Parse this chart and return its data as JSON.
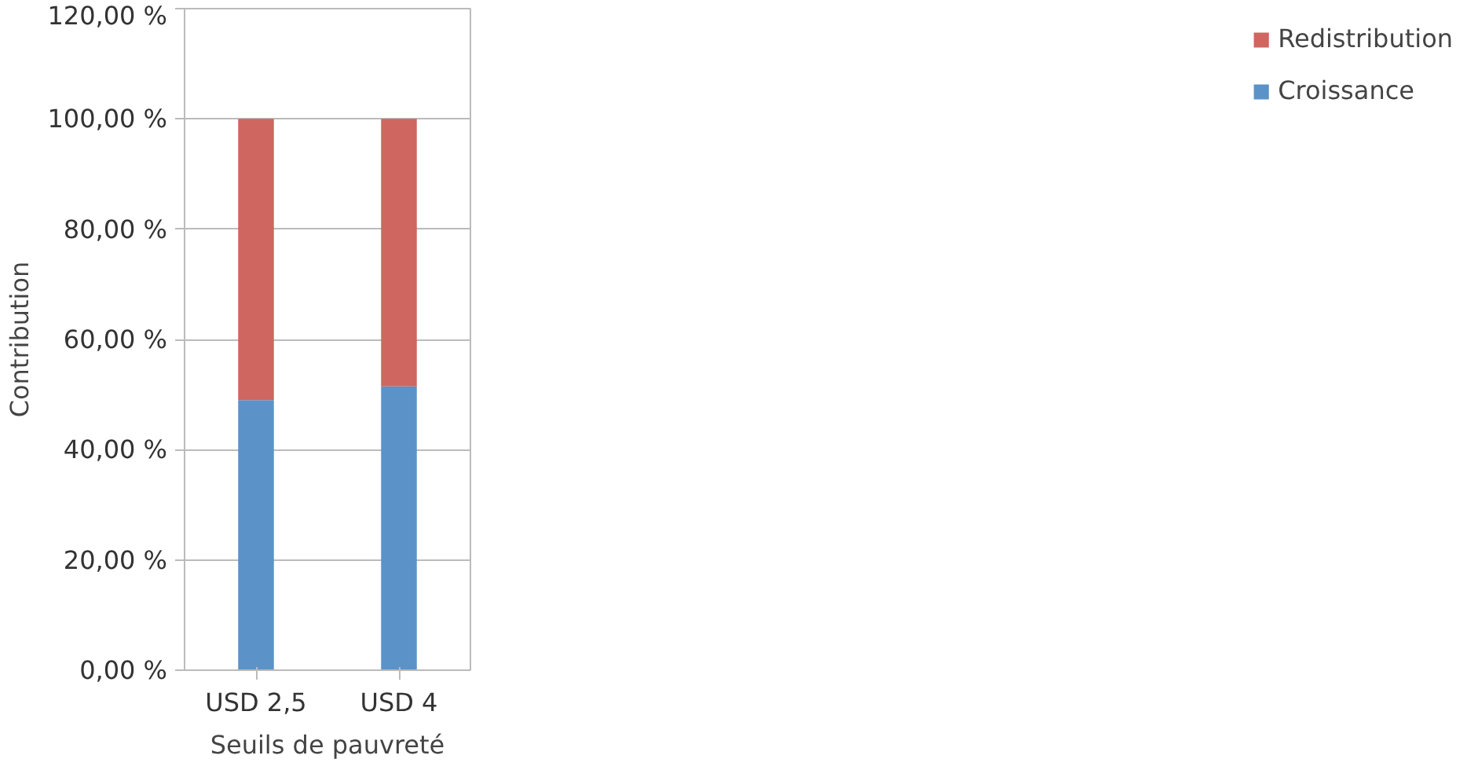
{
  "chart_data": {
    "type": "bar",
    "stacked": true,
    "xlabel": "Seuils de pauvreté",
    "ylabel": "Contribution",
    "categories": [
      "USD 2,5",
      "USD 4"
    ],
    "series": [
      {
        "name": "Croissance",
        "color": "#5b93c8",
        "values": [
          49,
          51.5
        ]
      },
      {
        "name": "Redistribution",
        "color": "#cf6660",
        "values": [
          51,
          48.5
        ]
      }
    ],
    "ylim": [
      0,
      120
    ],
    "yticks": [
      {
        "value": 0,
        "label": "0,00 %"
      },
      {
        "value": 20,
        "label": "20,00 %"
      },
      {
        "value": 40,
        "label": "40,00 %"
      },
      {
        "value": 60,
        "label": "60,00 %"
      },
      {
        "value": 80,
        "label": "80,00 %"
      },
      {
        "value": 100,
        "label": "100,00 %"
      },
      {
        "value": 120,
        "label": "120,00 %"
      }
    ],
    "grid": "y",
    "legend": "right"
  }
}
